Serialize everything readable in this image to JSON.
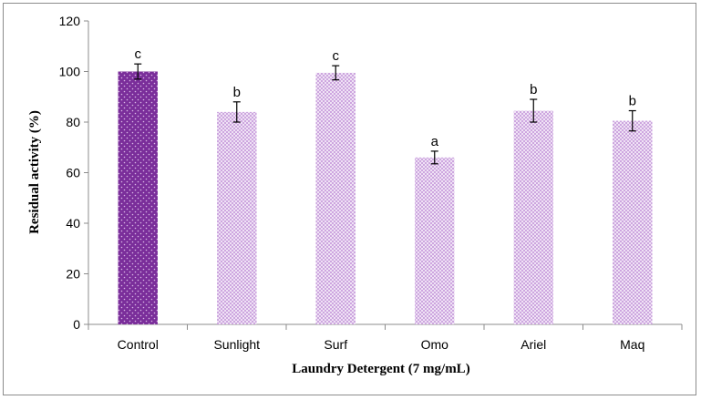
{
  "chart_data": {
    "type": "bar",
    "title": "",
    "xlabel": "Laundry Detergent (7 mg/mL)",
    "ylabel": "Residual activity (%)",
    "ylim": [
      0,
      120
    ],
    "yticks": [
      "0",
      "20",
      "40",
      "60",
      "80",
      "100",
      "120"
    ],
    "ytick_values": [
      0,
      20,
      40,
      60,
      80,
      100,
      120
    ],
    "grid": false,
    "legend": "none",
    "categories": [
      "Control",
      "Sunlight",
      "Surf",
      "Omo",
      "Ariel",
      "Maq"
    ],
    "values": [
      100,
      84,
      99.5,
      66,
      84.5,
      80.5
    ],
    "errors": [
      3,
      4,
      2.8,
      2.5,
      4.5,
      4
    ],
    "data_labels": [
      "c",
      "b",
      "c",
      "a",
      "b",
      "b"
    ],
    "colors": {
      "control_fill": "#7a2e9a",
      "control_dot": "#ffffff",
      "treatment_fill": "#ffffff",
      "treatment_pattern": "#b57bd0",
      "axis": "#8c8c8c",
      "error_bar": "#000000"
    }
  }
}
